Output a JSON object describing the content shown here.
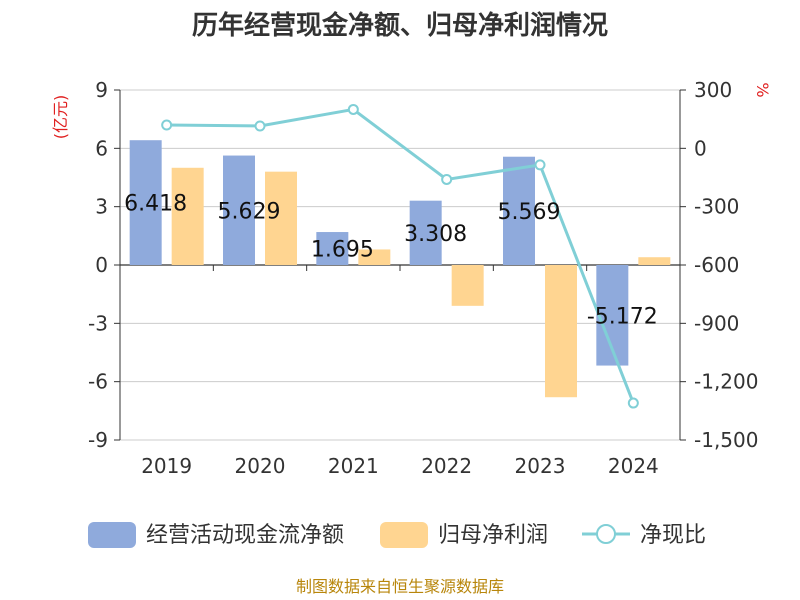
{
  "chart_data": {
    "type": "bar",
    "title": "历年经营现金净额、归母净利润情况",
    "categories": [
      "2019",
      "2020",
      "2021",
      "2022",
      "2023",
      "2024"
    ],
    "series": [
      {
        "name": "经营活动现金流净额",
        "kind": "bar",
        "axis": "left",
        "color": "#8faadc",
        "values": [
          6.418,
          5.629,
          1.695,
          3.308,
          5.569,
          -5.172
        ],
        "data_labels": [
          "6.418",
          "5.629",
          "1.695",
          "3.308",
          "5.569",
          "-5.172"
        ]
      },
      {
        "name": "归母净利润",
        "kind": "bar",
        "axis": "left",
        "color": "#ffd591",
        "values": [
          5.0,
          4.8,
          0.8,
          -2.1,
          -6.8,
          0.4
        ]
      },
      {
        "name": "净现比",
        "kind": "line",
        "axis": "right",
        "color": "#80cfd6",
        "values": [
          120,
          115,
          200,
          -160,
          -85,
          -1310
        ]
      }
    ],
    "y_left": {
      "label": "(亿元)",
      "ylim": [
        -9,
        9
      ],
      "ticks": [
        9,
        6,
        3,
        0,
        -3,
        -6,
        -9
      ],
      "tick_labels": [
        "9",
        "6",
        "3",
        "0",
        "-3",
        "-6",
        "-9"
      ]
    },
    "y_right": {
      "label": "%",
      "ylim": [
        -1500,
        300
      ],
      "ticks": [
        300,
        0,
        -300,
        -600,
        -900,
        -1200,
        -1500
      ],
      "tick_labels": [
        "300",
        "0",
        "-300",
        "-600",
        "-900",
        "-1,200",
        "-1,500"
      ]
    },
    "grid": true,
    "legend_position": "bottom"
  },
  "footer": {
    "source": "制图数据来自恒生聚源数据库"
  }
}
